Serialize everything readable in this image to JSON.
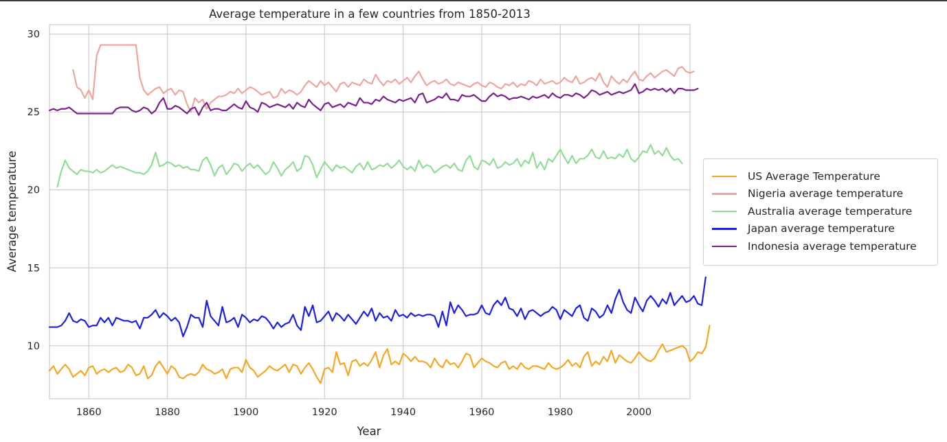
{
  "chart_data": {
    "type": "line",
    "title": "Average temperature in a few countries from 1850-2013",
    "xlabel": "Year",
    "ylabel": "Average temperature",
    "xlim": [
      1850,
      2013
    ],
    "ylim": [
      6.6,
      30.6
    ],
    "x_ticks": [
      1860,
      1880,
      1900,
      1920,
      1940,
      1960,
      1980,
      2000
    ],
    "y_ticks": [
      10,
      15,
      20,
      25,
      30
    ],
    "grid": true,
    "legend_position": "center-right, outside plot",
    "series": [
      {
        "name": "US Average Temperature",
        "color": "#f5a623",
        "start_year": 1850,
        "values": [
          8.4,
          8.7,
          8.2,
          8.5,
          8.8,
          8.5,
          8.0,
          8.2,
          8.4,
          8.1,
          8.6,
          8.7,
          8.2,
          8.4,
          8.5,
          8.3,
          8.5,
          8.6,
          8.3,
          8.4,
          8.8,
          8.6,
          8.1,
          8.2,
          8.7,
          7.9,
          8.1,
          8.7,
          9.0,
          8.6,
          8.2,
          8.7,
          8.5,
          8.0,
          7.9,
          8.1,
          8.2,
          8.1,
          8.3,
          8.8,
          8.5,
          8.4,
          8.2,
          8.3,
          8.5,
          7.9,
          8.5,
          8.6,
          8.6,
          8.3,
          9.1,
          8.6,
          8.4,
          8.0,
          8.2,
          8.4,
          8.7,
          8.5,
          8.4,
          8.6,
          8.8,
          8.3,
          8.8,
          8.7,
          8.2,
          8.6,
          8.9,
          8.5,
          8.0,
          7.6,
          8.5,
          8.6,
          8.3,
          9.6,
          8.8,
          8.9,
          8.1,
          9.0,
          9.1,
          8.7,
          8.9,
          8.7,
          9.1,
          9.6,
          8.6,
          9.4,
          9.8,
          8.8,
          9.0,
          8.8,
          9.5,
          9.3,
          9.0,
          9.3,
          9.0,
          9.0,
          8.9,
          8.6,
          9.2,
          8.8,
          8.6,
          9.1,
          8.8,
          8.9,
          8.6,
          9.0,
          9.5,
          9.4,
          8.6,
          8.9,
          9.2,
          9.0,
          8.9,
          8.7,
          8.6,
          8.9,
          9.0,
          8.5,
          8.7,
          8.5,
          8.9,
          8.6,
          8.5,
          8.7,
          8.7,
          8.6,
          8.5,
          8.9,
          8.6,
          8.5,
          8.6,
          8.8,
          9.1,
          8.7,
          8.9,
          8.6,
          9.3,
          9.6,
          8.7,
          9.0,
          8.8,
          9.3,
          9.0,
          9.7,
          8.9,
          9.4,
          9.2,
          9.0,
          8.9,
          9.2,
          9.6,
          9.3,
          9.1,
          9.0,
          9.2,
          9.7,
          10.1,
          9.6,
          9.7,
          9.8,
          9.9,
          10.0,
          9.8,
          9.0,
          9.2,
          9.6,
          9.5,
          9.9,
          11.3
        ]
      },
      {
        "name": "Nigeria average temperature",
        "color": "#f0a49c",
        "start_year": 1856,
        "values": [
          27.7,
          26.6,
          26.4,
          25.9,
          26.4,
          25.8,
          28.6,
          29.3,
          29.3,
          29.3,
          29.3,
          29.3,
          29.3,
          29.3,
          29.3,
          29.3,
          29.3,
          27.2,
          26.4,
          26.1,
          26.3,
          26.5,
          26.6,
          26.2,
          26.4,
          26.5,
          26.1,
          26.4,
          26.3,
          25.5,
          25.0,
          25.9,
          25.6,
          25.8,
          25.2,
          25.6,
          25.8,
          26.0,
          26.0,
          26.1,
          26.3,
          26.2,
          26.5,
          26.2,
          26.4,
          26.6,
          26.5,
          26.3,
          26.1,
          26.2,
          26.3,
          25.9,
          26.0,
          26.5,
          26.2,
          26.4,
          26.3,
          26.1,
          26.3,
          26.7,
          27.0,
          26.8,
          26.6,
          27.0,
          26.7,
          26.9,
          26.6,
          26.3,
          26.8,
          26.9,
          26.6,
          26.9,
          26.8,
          26.7,
          27.1,
          26.9,
          26.8,
          27.4,
          27.0,
          26.7,
          27.0,
          26.9,
          27.1,
          26.8,
          27.0,
          27.2,
          26.9,
          27.3,
          27.6,
          27.1,
          26.7,
          26.9,
          27.0,
          26.8,
          26.9,
          27.1,
          26.8,
          26.7,
          26.9,
          26.8,
          26.7,
          26.6,
          26.8,
          26.9,
          26.7,
          26.6,
          26.9,
          26.8,
          26.6,
          26.5,
          26.8,
          26.7,
          26.9,
          26.6,
          26.8,
          26.7,
          27.0,
          26.9,
          26.7,
          27.1,
          26.8,
          26.9,
          27.0,
          26.8,
          26.9,
          27.2,
          27.0,
          26.9,
          27.3,
          26.8,
          26.9,
          27.1,
          27.2,
          27.0,
          27.5,
          26.9,
          26.6,
          27.3,
          27.0,
          26.8,
          27.1,
          26.9,
          27.3,
          27.6,
          27.1,
          27.0,
          27.3,
          27.5,
          27.2,
          27.4,
          27.6,
          27.7,
          27.5,
          27.3,
          27.8,
          27.9,
          27.6,
          27.5,
          27.6
        ]
      },
      {
        "name": "Australia average temperature",
        "color": "#90dd96",
        "start_year": 1852,
        "values": [
          20.2,
          21.2,
          21.9,
          21.4,
          21.2,
          21.0,
          21.3,
          21.2,
          21.2,
          21.1,
          21.3,
          21.1,
          21.2,
          21.4,
          21.6,
          21.4,
          21.5,
          21.4,
          21.3,
          21.2,
          21.1,
          21.1,
          21.0,
          21.2,
          21.6,
          22.4,
          21.5,
          21.6,
          21.8,
          21.7,
          21.5,
          21.6,
          21.4,
          21.5,
          21.3,
          21.3,
          21.2,
          21.9,
          22.1,
          21.6,
          20.9,
          21.4,
          21.6,
          21.0,
          21.3,
          21.7,
          21.6,
          21.2,
          21.5,
          21.7,
          21.4,
          21.6,
          21.3,
          21.0,
          21.2,
          21.8,
          21.4,
          20.9,
          21.3,
          21.5,
          21.8,
          21.2,
          21.4,
          22.2,
          22.1,
          21.6,
          20.8,
          21.3,
          21.8,
          21.5,
          21.2,
          21.6,
          21.4,
          21.5,
          21.3,
          21.1,
          21.5,
          21.7,
          21.3,
          21.8,
          21.3,
          21.4,
          21.6,
          21.5,
          21.7,
          21.4,
          21.6,
          21.9,
          21.5,
          21.3,
          21.5,
          21.2,
          21.9,
          21.4,
          21.6,
          21.5,
          21.1,
          21.3,
          21.5,
          21.6,
          21.4,
          21.7,
          21.3,
          21.2,
          21.9,
          22.2,
          21.5,
          21.3,
          21.9,
          21.8,
          21.6,
          22.0,
          21.4,
          21.5,
          21.8,
          21.6,
          21.7,
          22.0,
          21.5,
          21.9,
          21.7,
          22.4,
          21.4,
          21.8,
          21.3,
          22.0,
          21.8,
          22.2,
          22.6,
          22.1,
          21.7,
          22.2,
          21.7,
          22.0,
          22.0,
          22.2,
          22.6,
          22.1,
          22.0,
          22.5,
          22.0,
          22.1,
          22.0,
          22.3,
          22.1,
          22.6,
          22.0,
          21.8,
          22.1,
          22.5,
          22.4,
          22.9,
          22.3,
          22.5,
          22.2,
          22.7,
          22.2,
          21.9,
          22.0,
          21.7
        ]
      },
      {
        "name": "Japan average temperature",
        "color": "#1a1fe0",
        "start_year": 1850,
        "values": [
          11.2,
          11.2,
          11.2,
          11.3,
          11.6,
          12.1,
          11.6,
          11.5,
          11.7,
          11.6,
          11.2,
          11.3,
          11.3,
          11.8,
          11.5,
          11.8,
          11.3,
          11.8,
          11.7,
          11.6,
          11.6,
          11.5,
          11.6,
          11.1,
          11.8,
          11.8,
          12.0,
          12.3,
          11.8,
          12.1,
          11.9,
          11.6,
          11.8,
          11.5,
          10.6,
          11.2,
          12.0,
          11.8,
          11.8,
          11.2,
          12.9,
          11.9,
          11.6,
          11.3,
          12.5,
          11.5,
          11.6,
          11.8,
          11.2,
          12.0,
          11.8,
          11.5,
          11.7,
          11.6,
          11.9,
          11.8,
          11.5,
          11.1,
          11.5,
          11.2,
          11.4,
          11.5,
          12.0,
          11.3,
          11.0,
          12.5,
          11.9,
          12.6,
          11.5,
          11.6,
          11.9,
          12.2,
          11.6,
          12.1,
          11.9,
          11.6,
          12.0,
          11.7,
          11.4,
          11.8,
          12.2,
          11.9,
          12.4,
          11.6,
          12.1,
          11.8,
          11.9,
          11.6,
          12.3,
          11.9,
          12.0,
          11.8,
          12.1,
          11.9,
          12.0,
          11.9,
          12.0,
          12.0,
          11.9,
          11.2,
          12.2,
          11.3,
          12.8,
          12.1,
          12.6,
          12.3,
          11.9,
          12.0,
          12.0,
          12.1,
          12.6,
          12.1,
          12.0,
          12.6,
          12.9,
          12.6,
          13.1,
          12.4,
          12.3,
          11.9,
          12.4,
          11.7,
          12.2,
          12.3,
          12.1,
          11.9,
          12.1,
          12.2,
          12.5,
          12.3,
          11.7,
          12.3,
          12.1,
          11.9,
          12.4,
          12.6,
          11.8,
          11.6,
          12.4,
          12.2,
          11.8,
          12.0,
          12.6,
          12.1,
          13.0,
          13.6,
          12.8,
          12.3,
          12.1,
          13.1,
          12.6,
          12.2,
          12.9,
          13.2,
          12.9,
          12.5,
          13.0,
          12.7,
          13.4,
          12.6,
          12.9,
          13.2,
          12.8,
          12.9,
          13.2,
          12.7,
          12.6,
          14.4
        ]
      },
      {
        "name": "Indonesia average temperature",
        "color": "#7b1f8e",
        "start_year": 1850,
        "values": [
          25.1,
          25.2,
          25.1,
          25.2,
          25.2,
          25.3,
          25.1,
          24.9,
          24.9,
          24.9,
          24.9,
          24.9,
          24.9,
          24.9,
          24.9,
          24.9,
          24.9,
          25.2,
          25.3,
          25.3,
          25.3,
          25.1,
          25.0,
          25.1,
          25.3,
          25.2,
          24.9,
          25.1,
          25.6,
          25.9,
          25.2,
          25.2,
          25.4,
          25.3,
          25.1,
          24.9,
          25.2,
          25.3,
          24.8,
          25.3,
          25.6,
          25.1,
          25.2,
          25.2,
          25.1,
          25.1,
          25.3,
          25.5,
          25.3,
          25.2,
          25.7,
          25.3,
          25.2,
          25.0,
          25.6,
          25.5,
          25.3,
          25.4,
          25.5,
          25.4,
          25.3,
          25.5,
          25.2,
          25.6,
          25.4,
          25.3,
          25.8,
          25.5,
          25.3,
          25.1,
          25.5,
          25.6,
          25.3,
          25.4,
          25.5,
          25.3,
          25.6,
          25.5,
          25.4,
          25.9,
          25.6,
          25.6,
          25.5,
          25.8,
          25.7,
          26.0,
          25.8,
          25.7,
          25.6,
          25.8,
          25.7,
          25.8,
          25.9,
          25.6,
          26.1,
          26.2,
          25.6,
          25.7,
          25.8,
          26.0,
          25.9,
          26.2,
          25.8,
          25.8,
          25.7,
          26.1,
          26.0,
          26.0,
          26.1,
          25.9,
          25.7,
          25.7,
          26.0,
          26.2,
          26.0,
          26.1,
          26.0,
          25.8,
          25.9,
          25.9,
          26.0,
          25.9,
          25.8,
          26.0,
          25.9,
          26.0,
          26.1,
          25.9,
          26.2,
          26.0,
          25.9,
          26.1,
          26.1,
          26.0,
          26.2,
          26.1,
          25.9,
          26.1,
          26.4,
          26.3,
          26.1,
          26.2,
          26.3,
          26.1,
          26.2,
          26.3,
          26.2,
          26.3,
          26.4,
          26.8,
          26.2,
          26.3,
          26.5,
          26.4,
          26.5,
          26.4,
          26.5,
          26.3,
          26.5,
          26.2,
          26.5,
          26.5,
          26.4,
          26.4,
          26.4,
          26.5
        ]
      }
    ]
  }
}
